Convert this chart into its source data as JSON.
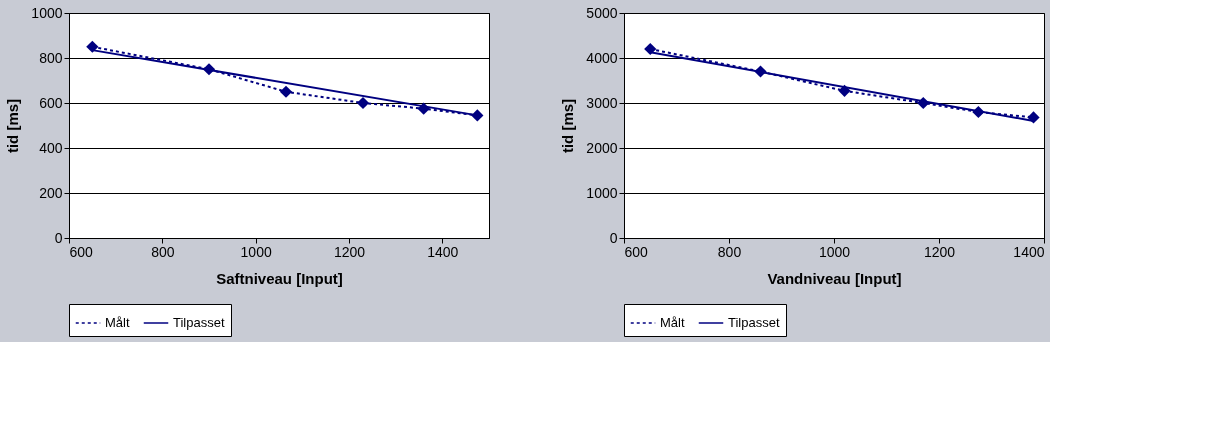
{
  "chart_data": [
    {
      "type": "line",
      "xlabel": "Saftniveau [Input]",
      "ylabel": "tid [ms]",
      "xlim": [
        600,
        1500
      ],
      "xticks": [
        600,
        800,
        1000,
        1200,
        1400
      ],
      "ylim": [
        0,
        1000
      ],
      "yticks": [
        0,
        200,
        400,
        600,
        800,
        1000
      ],
      "grid": "y",
      "legend": "bottom",
      "series": [
        {
          "name": "Målt",
          "color": "#000080",
          "marker": "diamond",
          "line_style": "dashed",
          "x": [
            650,
            900,
            1065,
            1230,
            1360,
            1475
          ],
          "values": [
            850,
            750,
            650,
            600,
            575,
            545
          ]
        },
        {
          "name": "Tilpasset",
          "color": "#000080",
          "line_style": "solid",
          "x": [
            650,
            1475
          ],
          "values": [
            835,
            545
          ]
        }
      ]
    },
    {
      "type": "line",
      "xlabel": "Vandniveau [Input]",
      "ylabel": "tid [ms]",
      "xlim": [
        600,
        1400
      ],
      "xticks": [
        600,
        800,
        1000,
        1200,
        1400
      ],
      "ylim": [
        0,
        5000
      ],
      "yticks": [
        0,
        1000,
        2000,
        3000,
        4000,
        5000
      ],
      "grid": "y",
      "legend": "bottom",
      "series": [
        {
          "name": "Målt",
          "color": "#000080",
          "marker": "diamond",
          "line_style": "dashed",
          "x": [
            650,
            860,
            1020,
            1170,
            1275,
            1380
          ],
          "values": [
            4200,
            3700,
            3270,
            3000,
            2800,
            2680
          ]
        },
        {
          "name": "Tilpasset",
          "color": "#000080",
          "line_style": "solid",
          "x": [
            650,
            1380
          ],
          "values": [
            4130,
            2600
          ]
        }
      ]
    }
  ]
}
